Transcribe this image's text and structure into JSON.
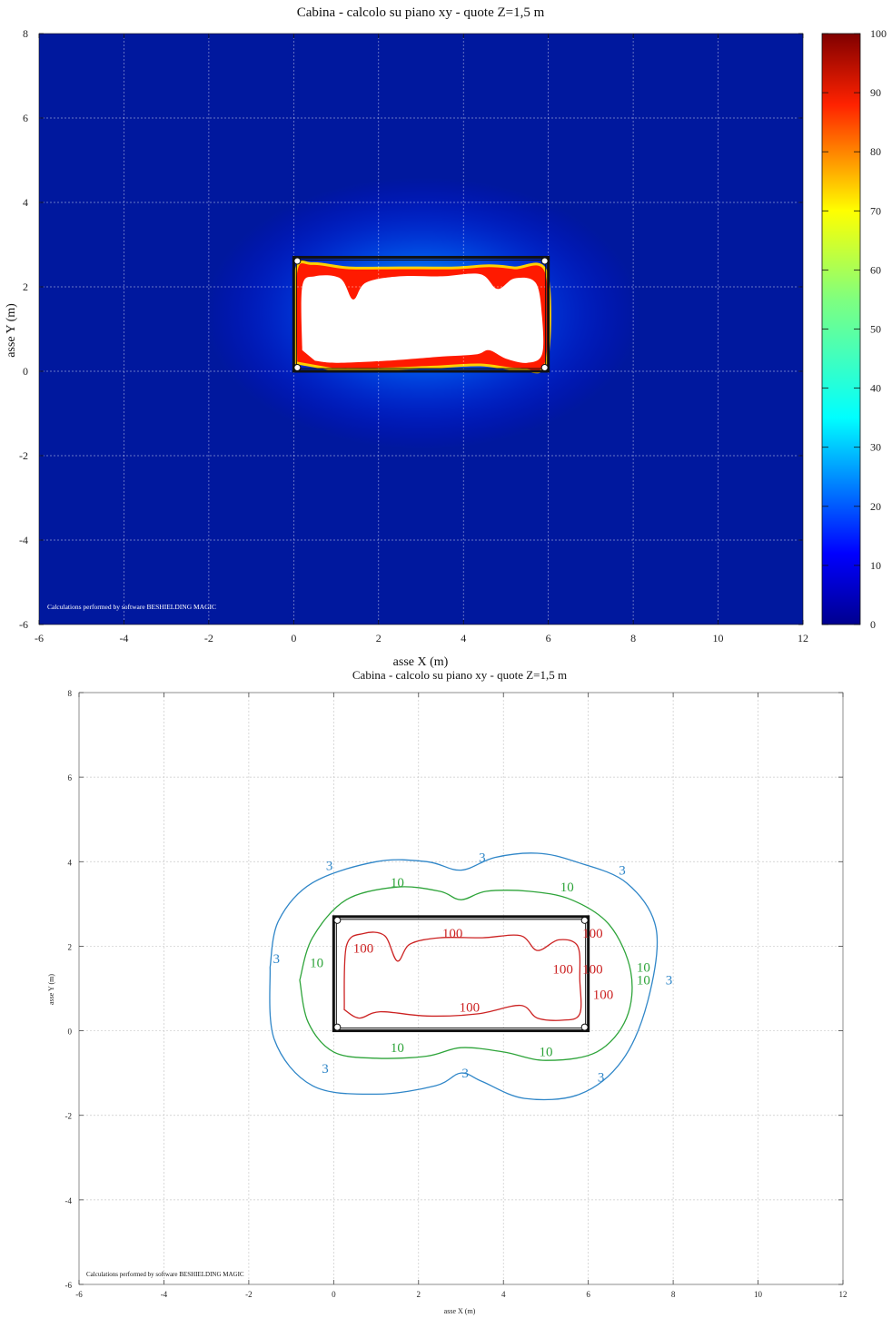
{
  "chart_data": [
    {
      "type": "heatmap",
      "title": "Cabina  -  calcolo su piano xy  -  quote Z=1,5 m",
      "xlabel": "asse X (m)",
      "ylabel": "asse Y (m)",
      "xlim": [
        -6,
        12
      ],
      "ylim": [
        -6,
        8
      ],
      "xticks": [
        -6,
        -4,
        -2,
        0,
        2,
        4,
        6,
        8,
        10,
        12
      ],
      "yticks": [
        -6,
        -4,
        -2,
        0,
        2,
        4,
        6,
        8
      ],
      "grid": true,
      "colorbar": {
        "min": 0,
        "max": 100,
        "ticks": [
          0,
          10,
          20,
          30,
          40,
          50,
          60,
          70,
          80,
          90,
          100
        ]
      },
      "cabin_outline": {
        "x": [
          0,
          6
        ],
        "y": [
          0,
          2.7
        ]
      },
      "field_zones": [
        {
          "level": 100,
          "outline": [
            [
              0.2,
              0.5
            ],
            [
              0.2,
              2.0
            ],
            [
              0.5,
              2.25
            ],
            [
              1.1,
              2.2
            ],
            [
              1.4,
              1.7
            ],
            [
              1.7,
              2.1
            ],
            [
              2.5,
              2.25
            ],
            [
              3.5,
              2.25
            ],
            [
              4.4,
              2.3
            ],
            [
              4.8,
              1.95
            ],
            [
              5.2,
              2.2
            ],
            [
              5.7,
              2.1
            ],
            [
              5.85,
              1.3
            ],
            [
              5.85,
              0.4
            ],
            [
              5.5,
              0.2
            ],
            [
              5.0,
              0.3
            ],
            [
              4.6,
              0.5
            ],
            [
              4.3,
              0.4
            ],
            [
              3.5,
              0.35
            ],
            [
              2.2,
              0.25
            ],
            [
              1.0,
              0.2
            ],
            [
              0.5,
              0.25
            ]
          ]
        },
        {
          "level": 60,
          "outline": [
            [
              0.05,
              0.2
            ],
            [
              0.05,
              2.35
            ],
            [
              0.45,
              2.55
            ],
            [
              1.3,
              2.45
            ],
            [
              2.5,
              2.45
            ],
            [
              3.8,
              2.45
            ],
            [
              4.6,
              2.5
            ],
            [
              5.2,
              2.45
            ],
            [
              5.95,
              2.35
            ],
            [
              5.95,
              0.2
            ],
            [
              5.3,
              0.05
            ],
            [
              4.4,
              0.15
            ],
            [
              3.3,
              0.1
            ],
            [
              2.0,
              0.05
            ],
            [
              0.9,
              0.05
            ]
          ]
        }
      ],
      "annotation": "Calculations performed by software BESHIELDING MAGIC"
    },
    {
      "type": "line",
      "title": "Cabina  -  calcolo su piano xy  -  quote Z=1,5 m",
      "xlabel": "asse X (m)",
      "ylabel": "asse Y (m)",
      "xlim": [
        -6,
        12
      ],
      "ylim": [
        -6,
        8
      ],
      "xticks": [
        -6,
        -4,
        -2,
        0,
        2,
        4,
        6,
        8,
        10,
        12
      ],
      "yticks": [
        -6,
        -4,
        -2,
        0,
        2,
        4,
        6,
        8
      ],
      "grid": true,
      "cabin_outline": {
        "x": [
          0,
          6
        ],
        "y": [
          0,
          2.7
        ]
      },
      "contours": [
        {
          "level": 3,
          "color": "#2f86c8",
          "points": [
            [
              -1.5,
              1.5
            ],
            [
              -1.3,
              2.6
            ],
            [
              -0.5,
              3.5
            ],
            [
              1.0,
              4.0
            ],
            [
              2.2,
              4.0
            ],
            [
              3.0,
              3.8
            ],
            [
              3.8,
              4.1
            ],
            [
              4.8,
              4.2
            ],
            [
              5.7,
              4.0
            ],
            [
              6.9,
              3.5
            ],
            [
              7.6,
              2.4
            ],
            [
              7.4,
              0.7
            ],
            [
              6.8,
              -0.7
            ],
            [
              5.8,
              -1.5
            ],
            [
              4.5,
              -1.6
            ],
            [
              3.5,
              -1.2
            ],
            [
              3.0,
              -1.0
            ],
            [
              2.4,
              -1.3
            ],
            [
              1.0,
              -1.5
            ],
            [
              -0.5,
              -1.3
            ],
            [
              -1.4,
              -0.2
            ],
            [
              -1.5,
              1.5
            ]
          ],
          "labels": [
            [
              "3",
              -0.1,
              3.8
            ],
            [
              "3",
              3.5,
              4.0
            ],
            [
              "3",
              6.8,
              3.7
            ],
            [
              "3",
              -1.35,
              1.6
            ],
            [
              "3",
              7.9,
              1.1
            ],
            [
              "3",
              -0.2,
              -1.0
            ],
            [
              "3",
              3.1,
              -1.1
            ],
            [
              "3",
              6.3,
              -1.2
            ]
          ]
        },
        {
          "level": 10,
          "color": "#2ea43a",
          "points": [
            [
              -0.8,
              1.2
            ],
            [
              -0.5,
              2.2
            ],
            [
              0.3,
              3.1
            ],
            [
              1.5,
              3.4
            ],
            [
              2.5,
              3.3
            ],
            [
              3.0,
              3.1
            ],
            [
              3.6,
              3.3
            ],
            [
              4.6,
              3.3
            ],
            [
              5.6,
              3.1
            ],
            [
              6.5,
              2.5
            ],
            [
              7.0,
              1.4
            ],
            [
              6.9,
              0.3
            ],
            [
              6.2,
              -0.5
            ],
            [
              5.0,
              -0.7
            ],
            [
              4.0,
              -0.5
            ],
            [
              3.0,
              -0.4
            ],
            [
              2.2,
              -0.6
            ],
            [
              1.0,
              -0.65
            ],
            [
              0.0,
              -0.5
            ],
            [
              -0.6,
              0.2
            ],
            [
              -0.8,
              1.2
            ]
          ],
          "labels": [
            [
              "10",
              1.5,
              3.4
            ],
            [
              "10",
              5.5,
              3.3
            ],
            [
              "10",
              -0.4,
              1.5
            ],
            [
              "10",
              7.3,
              1.4
            ],
            [
              "10",
              7.3,
              1.1
            ],
            [
              "10",
              1.5,
              -0.5
            ],
            [
              "10",
              5.0,
              -0.6
            ]
          ]
        },
        {
          "level": 100,
          "color": "#cc2222",
          "points": [
            [
              0.25,
              0.5
            ],
            [
              0.3,
              2.0
            ],
            [
              0.7,
              2.3
            ],
            [
              1.2,
              2.25
            ],
            [
              1.5,
              1.65
            ],
            [
              1.8,
              2.05
            ],
            [
              2.5,
              2.2
            ],
            [
              3.5,
              2.2
            ],
            [
              4.4,
              2.25
            ],
            [
              4.8,
              1.9
            ],
            [
              5.3,
              2.15
            ],
            [
              5.75,
              2.0
            ],
            [
              5.8,
              1.2
            ],
            [
              5.8,
              0.4
            ],
            [
              5.4,
              0.25
            ],
            [
              4.8,
              0.3
            ],
            [
              4.4,
              0.6
            ],
            [
              3.4,
              0.4
            ],
            [
              2.2,
              0.35
            ],
            [
              1.1,
              0.45
            ],
            [
              0.6,
              0.3
            ],
            [
              0.25,
              0.5
            ]
          ],
          "labels": [
            [
              "100",
              0.7,
              1.85
            ],
            [
              "100",
              2.8,
              2.2
            ],
            [
              "100",
              6.1,
              2.2
            ],
            [
              "100",
              5.4,
              1.35
            ],
            [
              "100",
              6.1,
              1.35
            ],
            [
              "100",
              6.35,
              0.75
            ],
            [
              "100",
              3.2,
              0.45
            ]
          ]
        }
      ],
      "annotation": "Calculations performed by software BESHIELDING MAGIC"
    }
  ]
}
